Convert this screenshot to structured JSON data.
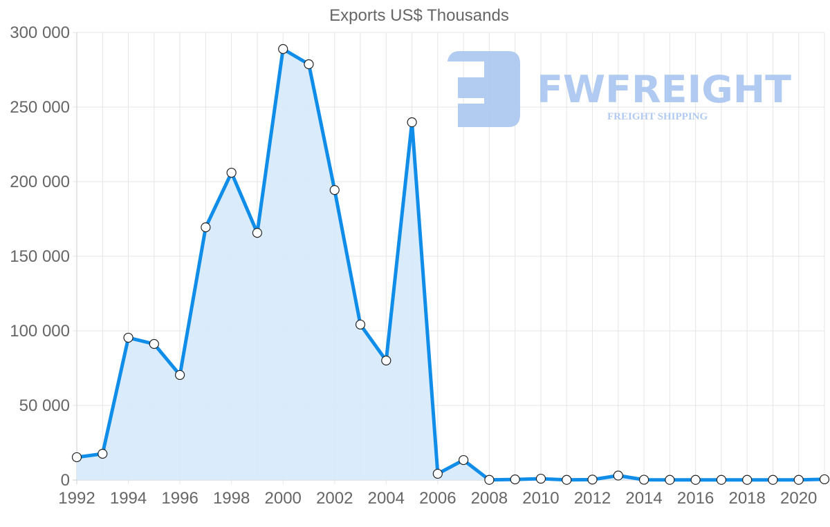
{
  "chart_data": {
    "type": "area",
    "title": "Exports US$ Thousands",
    "xlabel": "",
    "ylabel": "",
    "ylim": [
      0,
      300000
    ],
    "yticks": [
      0,
      50000,
      100000,
      150000,
      200000,
      250000,
      300000
    ],
    "ytick_labels": [
      "0",
      "50 000",
      "100 000",
      "150 000",
      "200 000",
      "250 000",
      "300 000"
    ],
    "xtick_labels": [
      "1992",
      "1994",
      "1996",
      "1998",
      "2000",
      "2002",
      "2004",
      "2006",
      "2008",
      "2010",
      "2012",
      "2014",
      "2016",
      "2018",
      "2020"
    ],
    "grid": true,
    "legend": null,
    "categories": [
      1992,
      1993,
      1994,
      1995,
      1996,
      1997,
      1998,
      1999,
      2000,
      2001,
      2002,
      2003,
      2004,
      2005,
      2006,
      2007,
      2008,
      2009,
      2010,
      2011,
      2012,
      2013,
      2014,
      2015,
      2016,
      2017,
      2018,
      2019,
      2020,
      2021
    ],
    "series": [
      {
        "name": "Exports US$ Thousands",
        "values": [
          15300,
          17600,
          95400,
          91200,
          70400,
          169400,
          206000,
          165700,
          288900,
          278700,
          194400,
          104200,
          80100,
          239800,
          4200,
          13400,
          100,
          400,
          900,
          100,
          300,
          3000,
          200,
          100,
          100,
          100,
          100,
          100,
          100,
          500
        ],
        "line_color": "#0f8de8",
        "fill_color": "#d6eafb"
      }
    ]
  },
  "watermark": {
    "brand": "FWFREIGHT",
    "tagline": "FREIGHT SHIPPING",
    "color": "#a9c5f0"
  }
}
